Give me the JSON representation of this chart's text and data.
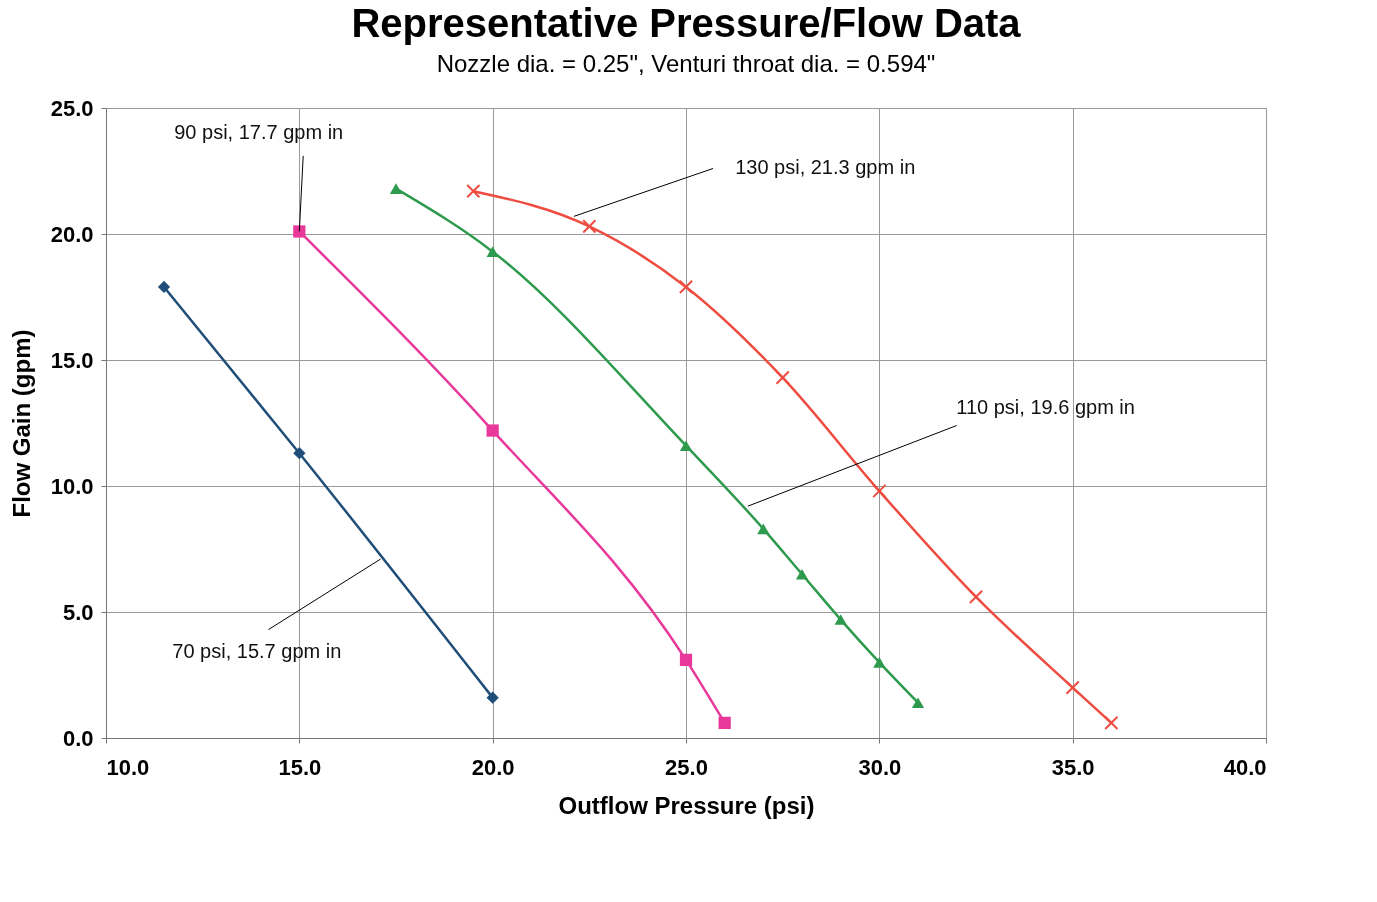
{
  "chart_data": {
    "type": "line",
    "title": "Representative Pressure/Flow Data",
    "subtitle": "Nozzle dia. = 0.25\", Venturi throat dia. = 0.594\"",
    "xlabel": "Outflow Pressure (psi)",
    "ylabel": "Flow Gain (gpm)",
    "series": [
      {
        "color": "#1f4e79",
        "marker": "diamond",
        "x": [
          11.5,
          15,
          20
        ],
        "values": [
          17.9,
          11.3,
          1.6
        ]
      },
      {
        "color": "#e8399a",
        "marker": "square",
        "x": [
          15,
          20,
          25,
          26
        ],
        "values": [
          20.1,
          12.2,
          3.1,
          0.6
        ]
      },
      {
        "color": "#2e9a4e",
        "marker": "triangle",
        "x": [
          17.5,
          20,
          25,
          27,
          28,
          29,
          30,
          31
        ],
        "values": [
          21.8,
          19.3,
          11.6,
          8.3,
          6.5,
          4.7,
          3.0,
          1.4
        ]
      },
      {
        "color": "#ee4c40",
        "marker": "cross",
        "x": [
          19.5,
          22.5,
          25,
          27.5,
          30,
          32.5,
          35,
          36
        ],
        "values": [
          21.7,
          20.3,
          17.9,
          14.3,
          9.8,
          5.6,
          2.0,
          0.6
        ]
      }
    ],
    "annotations": [
      {
        "text": "90 psi, 17.7 gpm in",
        "x": 15,
        "y": 20.1
      },
      {
        "text": "130 psi, 21.3 gpm in",
        "x": 22.1,
        "y": 20.7
      },
      {
        "text": "110 psi, 19.6 gpm in",
        "x": 26.6,
        "y": 9.2
      },
      {
        "text": "70 psi, 15.7 gpm in",
        "x": 17.1,
        "y": 7.1
      }
    ],
    "xlim": [
      10,
      40
    ],
    "ylim": [
      0,
      25
    ],
    "xticks": [
      {
        "value": 10,
        "label": "10.0"
      },
      {
        "value": 15,
        "label": "15.0"
      },
      {
        "value": 20,
        "label": "20.0"
      },
      {
        "value": 25,
        "label": "25.0"
      },
      {
        "value": 30,
        "label": "30.0"
      },
      {
        "value": 35,
        "label": "35.0"
      },
      {
        "value": 40,
        "label": "40.0"
      }
    ],
    "yticks": [
      {
        "value": 0,
        "label": "0.0"
      },
      {
        "value": 5,
        "label": "5.0"
      },
      {
        "value": 10,
        "label": "10.0"
      },
      {
        "value": 15,
        "label": "15.0"
      },
      {
        "value": 20,
        "label": "20.0"
      },
      {
        "value": 25,
        "label": "25.0"
      }
    ],
    "grid": true,
    "line_style": "solid"
  }
}
